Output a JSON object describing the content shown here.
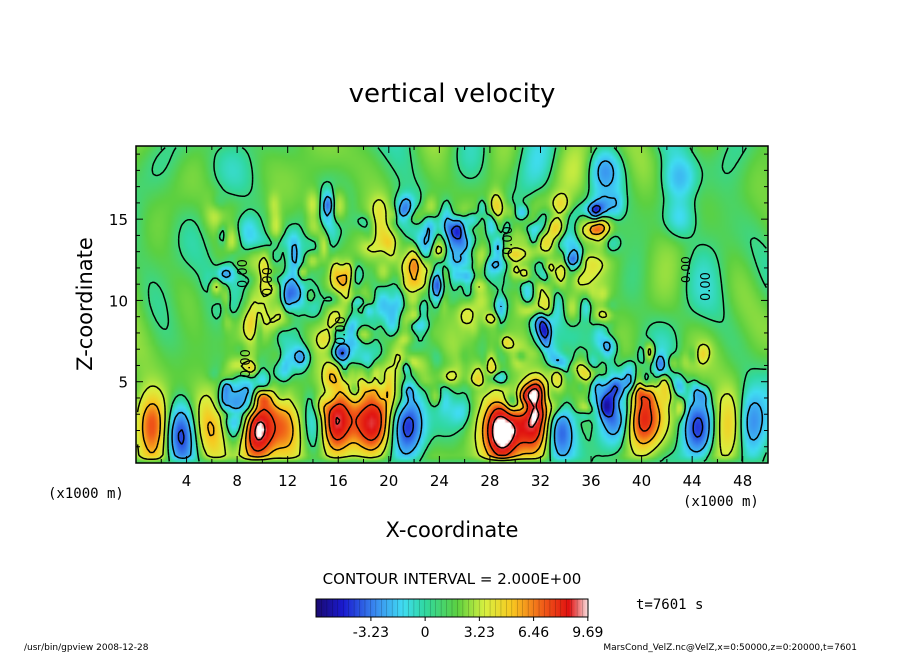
{
  "chart_data": {
    "type": "heatmap",
    "title": "vertical velocity",
    "xlabel": "X-coordinate",
    "ylabel": "Z-coordinate",
    "x_unit_left": "(x1000 m)",
    "x_unit_right": "(x1000 m)",
    "xlim": [
      0,
      50
    ],
    "ylim": [
      0,
      19.5
    ],
    "x_ticks": [
      "4",
      "8",
      "12",
      "16",
      "20",
      "24",
      "28",
      "32",
      "36",
      "40",
      "44",
      "48"
    ],
    "y_ticks": [
      "5",
      "10",
      "15"
    ],
    "contour_interval_label": "CONTOUR INTERVAL = 2.000E+00",
    "contour_labels": [
      "0.00",
      "0.00",
      "0.00",
      "0.00",
      "0.00",
      "0.00",
      "0.00"
    ],
    "colorbar": {
      "range": [
        -6.5,
        9.7
      ],
      "tick_labels": [
        "-3.23",
        "0",
        "3.23",
        "6.46",
        "9.69"
      ],
      "tick_values": [
        -3.23,
        0,
        3.23,
        6.46,
        9.69
      ]
    },
    "time_label": "t=7601 s",
    "footer_left": "/usr/bin/gpview  2008-12-28",
    "footer_right": "MarsCond_VelZ.nc@VelZ,x=0:50000,z=0:20000,t=7601",
    "updraft_cores": [
      {
        "x": 1.2,
        "z": 2.5,
        "w": 6.5
      },
      {
        "x": 6.0,
        "z": 2.3,
        "w": 3.5
      },
      {
        "x": 9.5,
        "z": 2.0,
        "w": 9.7
      },
      {
        "x": 12.0,
        "z": 2.2,
        "w": 3.5
      },
      {
        "x": 15.5,
        "z": 2.5,
        "w": 9.7
      },
      {
        "x": 18.8,
        "z": 2.5,
        "w": 7.0
      },
      {
        "x": 29.0,
        "z": 2.0,
        "w": 9.7
      },
      {
        "x": 31.5,
        "z": 2.5,
        "w": 8.0
      },
      {
        "x": 40.0,
        "z": 2.7,
        "w": 6.5
      },
      {
        "x": 47.0,
        "z": 2.5,
        "w": 3.5
      }
    ],
    "downdraft_cores": [
      {
        "x": 3.5,
        "z": 1.8,
        "w": -5.5
      },
      {
        "x": 8.0,
        "z": 2.8,
        "w": -5.0
      },
      {
        "x": 14.5,
        "z": 2.5,
        "w": -4.5
      },
      {
        "x": 21.5,
        "z": 2.3,
        "w": -5.0
      },
      {
        "x": 33.5,
        "z": 2.0,
        "w": -5.5
      },
      {
        "x": 38.0,
        "z": 3.5,
        "w": -4.5
      },
      {
        "x": 44.5,
        "z": 2.0,
        "w": -4.5
      },
      {
        "x": 48.5,
        "z": 2.5,
        "w": -4.0
      },
      {
        "x": 37.0,
        "z": 18.0,
        "w": -2.5
      },
      {
        "x": 43.0,
        "z": 17.5,
        "w": -2.0
      },
      {
        "x": 43.0,
        "z": 15.0,
        "w": -2.0
      },
      {
        "x": 8.0,
        "z": 14.0,
        "w": -2.0
      },
      {
        "x": 21.0,
        "z": 15.0,
        "w": -2.0
      }
    ]
  }
}
